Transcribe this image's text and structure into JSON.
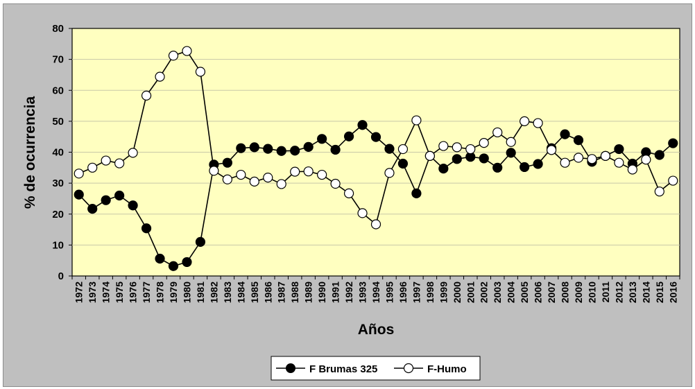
{
  "chart_data": {
    "type": "line",
    "xlabel": "Años",
    "ylabel": "% de ocurrencia",
    "ylim": [
      0,
      80
    ],
    "yticks": [
      0,
      10,
      20,
      30,
      40,
      50,
      60,
      70,
      80
    ],
    "grid": "horizontal",
    "legend_position": "bottom",
    "plot_background": "#ffffc0",
    "categories": [
      "1972",
      "1973",
      "1974",
      "1975",
      "1976",
      "1977",
      "1978",
      "1979",
      "1980",
      "1981",
      "1982",
      "1983",
      "1984",
      "1985",
      "1986",
      "1987",
      "1988",
      "1989",
      "1990",
      "1991",
      "1992",
      "1993",
      "1994",
      "1995",
      "1996",
      "1997",
      "1998",
      "1999",
      "2000",
      "2001",
      "2002",
      "2003",
      "2004",
      "2005",
      "2006",
      "2007",
      "2008",
      "2009",
      "2010",
      "2011",
      "2012",
      "2013",
      "2014",
      "2015",
      "2016"
    ],
    "series": [
      {
        "name": "F Brumas 325",
        "marker": "filled-circle",
        "color": "#000000",
        "values": [
          26.3,
          21.7,
          24.5,
          26.0,
          22.8,
          15.4,
          5.6,
          3.2,
          4.5,
          11.0,
          36.0,
          36.6,
          41.3,
          41.6,
          41.1,
          40.4,
          40.5,
          41.7,
          44.3,
          40.8,
          45.1,
          48.8,
          44.9,
          41.1,
          36.3,
          26.7,
          38.8,
          34.7,
          37.8,
          38.5,
          38.0,
          35.0,
          39.8,
          35.2,
          36.2,
          41.3,
          45.8,
          43.9,
          36.9,
          38.8,
          41.0,
          36.3,
          40.0,
          39.1,
          42.9
        ]
      },
      {
        "name": "F-Humo",
        "marker": "open-circle",
        "color": "#000000",
        "values": [
          33.1,
          35.0,
          37.3,
          36.4,
          39.8,
          58.3,
          64.4,
          71.2,
          72.7,
          66.0,
          34.0,
          31.2,
          32.7,
          30.5,
          31.8,
          29.7,
          33.7,
          33.8,
          32.7,
          29.8,
          26.7,
          20.3,
          16.7,
          33.3,
          41.0,
          50.3,
          38.8,
          42.0,
          41.6,
          41.0,
          43.0,
          46.4,
          43.3,
          50.0,
          49.4,
          40.7,
          36.6,
          38.2,
          37.8,
          38.8,
          36.6,
          34.4,
          37.6,
          27.3,
          30.8
        ]
      }
    ]
  }
}
